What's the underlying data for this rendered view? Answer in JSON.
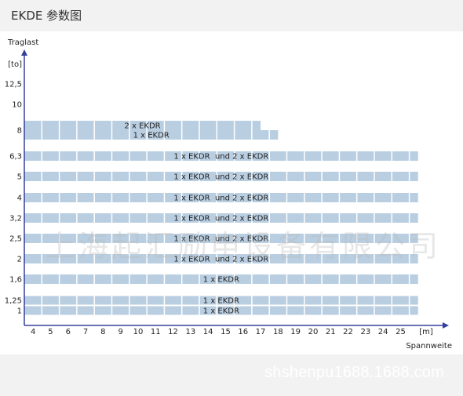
{
  "header": {
    "title": "EKDE 参数图"
  },
  "watermark": {
    "text": "上海起汇励申设备有限公司"
  },
  "footer": {
    "url": "shshenpu1688.1688.com"
  },
  "colors": {
    "bar": "#b9cee1",
    "axis": "#33409a",
    "cell_divider": "#ffffff"
  },
  "chart_data": {
    "type": "bar",
    "orientation": "horizontal",
    "title": "",
    "ylabel": "Traglast",
    "yunit": "[to]",
    "xlabel": "Spannweite",
    "xunit": "[m]",
    "x_ticks": [
      "4",
      "5",
      "6",
      "7",
      "8",
      "9",
      "10",
      "11",
      "12",
      "13",
      "14",
      "15",
      "16",
      "17",
      "18",
      "19",
      "20",
      "21",
      "22",
      "23",
      "24",
      "25"
    ],
    "y_ticks": [
      "12,5",
      "10",
      "8",
      "6,3",
      "5",
      "4",
      "3,2",
      "2,5",
      "2",
      "1,6",
      "1,25",
      "1"
    ],
    "xlim": [
      3.0,
      25.5
    ],
    "series": [
      {
        "label": "2 x EKDR",
        "load": "8",
        "load_value": 8,
        "span_max_m": 16.5
      },
      {
        "label": "1 x EKDR",
        "load": "8",
        "load_value": 8,
        "span_max_m": 17.5
      },
      {
        "label": "1 x EKDR  und 2 x EKDR",
        "load": "6,3",
        "load_value": 6.3,
        "span_max_m": 25.5
      },
      {
        "label": "1 x EKDR  und 2 x EKDR",
        "load": "5",
        "load_value": 5,
        "span_max_m": 25.5
      },
      {
        "label": "1 x EKDR  und 2 x EKDR",
        "load": "4",
        "load_value": 4,
        "span_max_m": 25.5
      },
      {
        "label": "1 x EKDR  und 2 x EKDR",
        "load": "3,2",
        "load_value": 3.2,
        "span_max_m": 25.5
      },
      {
        "label": "1 x EKDR  und 2 x EKDR",
        "load": "2,5",
        "load_value": 2.5,
        "span_max_m": 25.5
      },
      {
        "label": "1 x EKDR  und 2 x EKDR",
        "load": "2",
        "load_value": 2,
        "span_max_m": 25.5
      },
      {
        "label": "1 x EKDR",
        "load": "1,6",
        "load_value": 1.6,
        "span_max_m": 25.5
      },
      {
        "label": "1 x EKDR",
        "load": "1,25",
        "load_value": 1.25,
        "span_max_m": 25.5
      },
      {
        "label": "1 x EKDR",
        "load": "1",
        "load_value": 1,
        "span_max_m": 25.5
      }
    ]
  }
}
